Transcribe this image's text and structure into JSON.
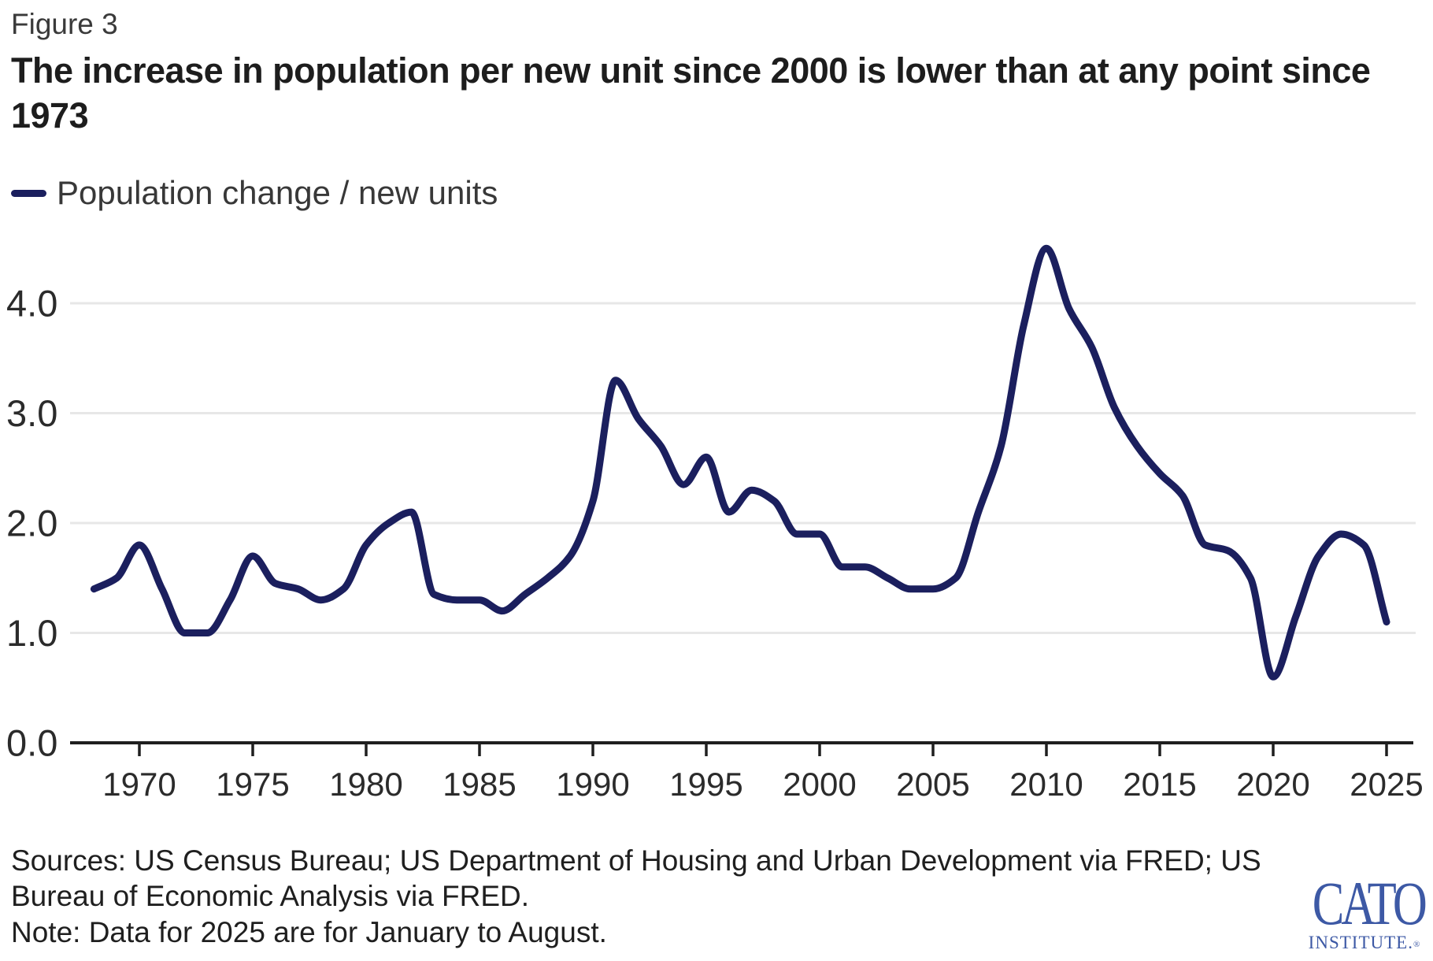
{
  "header": {
    "figure_label": "Figure 3",
    "title_lines": [
      "The increase in population per new unit since 2000 is lower than at any point since",
      "1973"
    ]
  },
  "legend": {
    "label": "Population change / new units",
    "color": "#1b1f5e"
  },
  "chart_data": {
    "type": "line",
    "title": "The increase in population per new unit since 2000 is lower than at any point since 1973",
    "xlabel": "",
    "ylabel": "",
    "grid": "horizontal",
    "legend_position": "top-left",
    "xlim": [
      1966.9,
      2026.2
    ],
    "ylim": [
      0,
      4.8
    ],
    "x_ticks": [
      1970,
      1975,
      1980,
      1985,
      1990,
      1995,
      2000,
      2005,
      2010,
      2015,
      2020,
      2025
    ],
    "y_ticks": [
      0,
      1,
      2,
      3,
      4
    ],
    "y_tick_labels": [
      "0.0",
      "1.0",
      "2.0",
      "3.0",
      "4.0"
    ],
    "x": [
      1968,
      1969,
      1970,
      1971,
      1972,
      1973,
      1974,
      1975,
      1976,
      1977,
      1978,
      1979,
      1980,
      1981,
      1982,
      1983,
      1984,
      1985,
      1986,
      1987,
      1988,
      1989,
      1990,
      1991,
      1992,
      1993,
      1994,
      1995,
      1996,
      1997,
      1998,
      1999,
      2000,
      2001,
      2002,
      2003,
      2004,
      2005,
      2006,
      2007,
      2008,
      2009,
      2010,
      2011,
      2012,
      2013,
      2014,
      2015,
      2016,
      2017,
      2018,
      2019,
      2020,
      2021,
      2022,
      2023,
      2024,
      2025
    ],
    "series": [
      {
        "name": "Population change / new units",
        "color": "#1b1f5e",
        "values": [
          1.4,
          1.5,
          1.8,
          1.4,
          1.0,
          1.0,
          1.3,
          1.7,
          1.45,
          1.4,
          1.3,
          1.4,
          1.8,
          2.0,
          2.1,
          1.35,
          1.3,
          1.3,
          1.2,
          1.35,
          1.5,
          1.7,
          2.2,
          3.3,
          2.95,
          2.7,
          2.35,
          2.6,
          2.1,
          2.3,
          2.2,
          1.9,
          1.9,
          1.6,
          1.6,
          1.5,
          1.4,
          1.4,
          1.5,
          2.1,
          2.7,
          3.8,
          4.5,
          3.95,
          3.6,
          3.05,
          2.7,
          2.45,
          2.25,
          1.8,
          1.75,
          1.5,
          0.6,
          1.15,
          1.7,
          1.9,
          1.8,
          1.1
        ]
      }
    ]
  },
  "footer": {
    "sources_lines": [
      "Sources: US Census Bureau; US Department of Housing and Urban Development via FRED; US",
      "Bureau of Economic Analysis via FRED."
    ],
    "note": "Note: Data for 2025 are for January to August."
  },
  "logo": {
    "name": "CATO",
    "subtitle": "INSTITUTE.",
    "registered": "®"
  },
  "colors": {
    "line": "#1b1f5e",
    "axis": "#1f1f1f",
    "grid": "#e7e7e7",
    "tick_label": "#2b2b2b",
    "cato_blue": "#3d59a5"
  }
}
